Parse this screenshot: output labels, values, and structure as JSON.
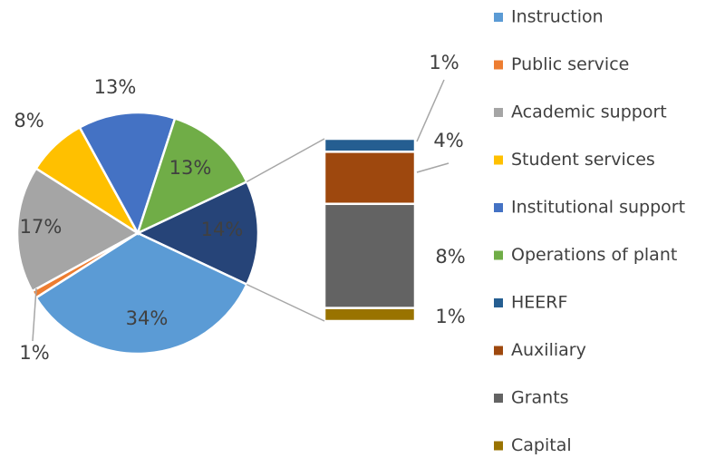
{
  "chart_data": {
    "type": "pie-of-bar",
    "pie": {
      "categories": [
        "Instruction",
        "Public service",
        "Academic support",
        "Student services",
        "Institutional support",
        "Operations of plant"
      ],
      "values": [
        34,
        1,
        17,
        8,
        13,
        13
      ],
      "value_labels": [
        "34%",
        "1%",
        "17%",
        "8%",
        "13%",
        "13%"
      ],
      "colors": [
        "#5b9bd5",
        "#ed7d31",
        "#a5a5a5",
        "#ffc000",
        "#4472c4",
        "#70ad47"
      ]
    },
    "other_value": 14,
    "other_value_label": "14%",
    "other_color": "#264478",
    "bar": {
      "categories": [
        "HEERF",
        "Auxiliary",
        "Grants",
        "Capital"
      ],
      "values": [
        1,
        4,
        8,
        1
      ],
      "value_labels": [
        "1%",
        "4%",
        "8%",
        "1%"
      ],
      "colors": [
        "#255e91",
        "#9e480e",
        "#636363",
        "#997300"
      ]
    }
  }
}
